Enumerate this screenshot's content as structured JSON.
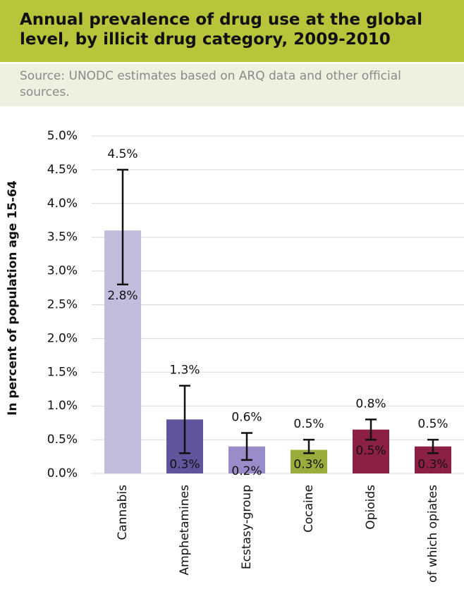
{
  "chart_data": {
    "type": "bar_errorbar",
    "title": "Annual prevalence of drug use at the global level, by illicit drug category, 2009-2010",
    "subtitle": "Source: UNODC estimates based on ARQ data and other official sources.",
    "y_label": "In percent of population age 15-64",
    "categories": [
      "Cannabis",
      "Amphetamines",
      "Ecstasy-group",
      "Cocaine",
      "Opioids",
      "of which opiates"
    ],
    "values": [
      3.6,
      0.8,
      0.4,
      0.35,
      0.65,
      0.4
    ],
    "low": [
      2.8,
      0.3,
      0.2,
      0.3,
      0.5,
      0.3
    ],
    "low_labels": [
      "2.8%",
      "0.3%",
      "0.2%",
      "0.3%",
      "0.5%",
      "0.3%"
    ],
    "high": [
      4.5,
      1.3,
      0.6,
      0.5,
      0.8,
      0.5
    ],
    "high_labels": [
      "4.5%",
      "1.3%",
      "0.6%",
      "0.5%",
      "0.8%",
      "0.5%"
    ],
    "colors": [
      "#c3bcdc",
      "#5f559c",
      "#9a8cc8",
      "#98ad3c",
      "#8b1f45",
      "#8b1f45"
    ],
    "ylim": [
      0,
      5
    ],
    "yticks": [
      {
        "value": 0,
        "label": "0.0%"
      },
      {
        "value": 0.5,
        "label": "0.5%"
      },
      {
        "value": 1,
        "label": "1.0%"
      },
      {
        "value": 1.5,
        "label": "1.5%"
      },
      {
        "value": 2,
        "label": "2.0%"
      },
      {
        "value": 2.5,
        "label": "2.5%"
      },
      {
        "value": 3,
        "label": "3.0%"
      },
      {
        "value": 3.5,
        "label": "3.5%"
      },
      {
        "value": 4,
        "label": "4.0%"
      },
      {
        "value": 4.5,
        "label": "4.5%"
      },
      {
        "value": 5,
        "label": "5.0%"
      }
    ],
    "grid": true
  }
}
